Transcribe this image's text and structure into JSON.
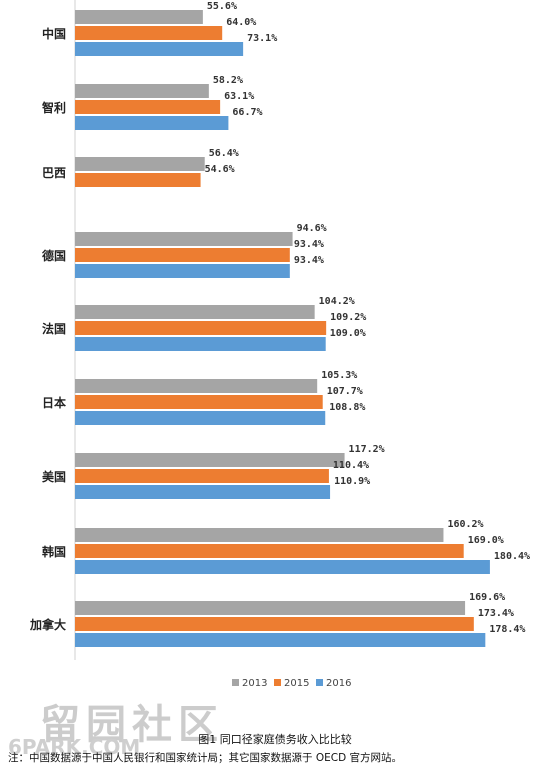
{
  "chart_data": {
    "type": "bar",
    "orientation": "horizontal",
    "categories": [
      "中国",
      "智利",
      "巴西",
      "德国",
      "法国",
      "日本",
      "美国",
      "韩国",
      "加拿大"
    ],
    "series": [
      {
        "name": "2013",
        "color": "#a5a5a5",
        "values": [
          55.6,
          58.2,
          56.4,
          94.6,
          104.2,
          105.3,
          117.2,
          160.2,
          169.6
        ],
        "labels": [
          "55.6%",
          "58.2%",
          "56.4%",
          "94.6%",
          "104.2%",
          "105.3%",
          "117.2%",
          "160.2%",
          "169.6%"
        ]
      },
      {
        "name": "2015",
        "color": "#ed7d31",
        "values": [
          64.0,
          63.1,
          54.6,
          93.4,
          109.2,
          107.7,
          110.4,
          169.0,
          173.4
        ],
        "labels": [
          "64.0%",
          "63.1%",
          "54.6%",
          "93.4%",
          "109.2%",
          "107.7%",
          "110.4%",
          "169.0%",
          "173.4%"
        ]
      },
      {
        "name": "2016",
        "color": "#5b9bd5",
        "values": [
          73.1,
          66.7,
          null,
          93.4,
          109.0,
          108.8,
          110.9,
          180.4,
          178.4
        ],
        "labels": [
          "73.1%",
          "66.7%",
          null,
          "93.4%",
          "109.0%",
          "108.8%",
          "110.9%",
          "180.4%",
          "178.4%"
        ]
      }
    ],
    "xlim": [
      0,
      185
    ],
    "legend_position": "bottom"
  },
  "caption": "图1 同口径家庭债务收入比比较",
  "note": "注：中国数据源于中国人民银行和国家统计局；其它国家数据源于 OECD 官方网站。",
  "watermark": {
    "chinese": "留园社区",
    "site": "6PARK.COM"
  }
}
